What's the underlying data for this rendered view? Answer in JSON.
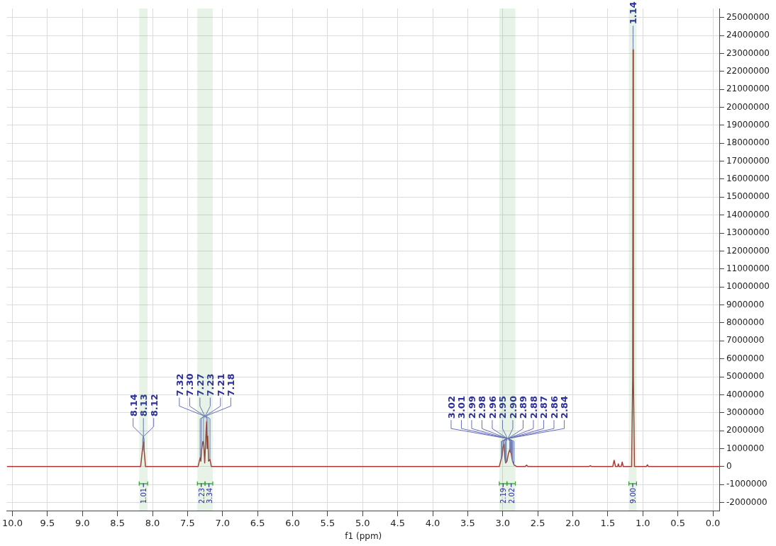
{
  "chart_data": {
    "type": "line",
    "xlabel": "f1 (ppm)",
    "grid": true,
    "legend": false,
    "marker": "none",
    "line_style": "solid",
    "xlim": [
      10.08,
      -0.1
    ],
    "xticks": [
      {
        "value": 10,
        "label": "10.0"
      },
      {
        "value": 9.5,
        "label": "9.5"
      },
      {
        "value": 9,
        "label": "9.0"
      },
      {
        "value": 8.5,
        "label": "8.5"
      },
      {
        "value": 8,
        "label": "8.0"
      },
      {
        "value": 7.5,
        "label": "7.5"
      },
      {
        "value": 7,
        "label": "7.0"
      },
      {
        "value": 6.5,
        "label": "6.5"
      },
      {
        "value": 6,
        "label": "6.0"
      },
      {
        "value": 5.5,
        "label": "5.5"
      },
      {
        "value": 5,
        "label": "5.0"
      },
      {
        "value": 4.5,
        "label": "4.5"
      },
      {
        "value": 4,
        "label": "4.0"
      },
      {
        "value": 3.5,
        "label": "3.5"
      },
      {
        "value": 3,
        "label": "3.0"
      },
      {
        "value": 2.5,
        "label": "2.5"
      },
      {
        "value": 2,
        "label": "2.0"
      },
      {
        "value": 1.5,
        "label": "1.5"
      },
      {
        "value": 1,
        "label": "1.0"
      },
      {
        "value": 0.5,
        "label": "0.5"
      },
      {
        "value": 0,
        "label": "0.0"
      }
    ],
    "ylim": [
      -2450000,
      25500000
    ],
    "yticks": [
      -2000000,
      -1000000,
      0,
      1000000,
      2000000,
      3000000,
      4000000,
      5000000,
      6000000,
      7000000,
      8000000,
      9000000,
      10000000,
      11000000,
      12000000,
      13000000,
      14000000,
      15000000,
      16000000,
      17000000,
      18000000,
      19000000,
      20000000,
      21000000,
      22000000,
      23000000,
      24000000,
      25000000
    ],
    "series": [
      {
        "color": "#a83a3a",
        "x": [
          10.08,
          8.17,
          8.145,
          8.135,
          8.13,
          8.125,
          8.12,
          8.1,
          7.35,
          7.32,
          7.31,
          7.3,
          7.29,
          7.28,
          7.27,
          7.255,
          7.24,
          7.23,
          7.22,
          7.21,
          7.2,
          7.18,
          7.16,
          3.05,
          3.02,
          3.01,
          2.995,
          2.98,
          2.97,
          2.96,
          2.94,
          2.92,
          2.9,
          2.89,
          2.88,
          2.87,
          2.86,
          2.84,
          2.8,
          2.68,
          2.66,
          2.64,
          1.77,
          1.75,
          1.73,
          1.43,
          1.41,
          1.39,
          1.36,
          1.35,
          1.34,
          1.31,
          1.295,
          1.28,
          1.16,
          1.145,
          1.14,
          1.135,
          1.12,
          0.95,
          0.935,
          0.92,
          -0.1
        ],
        "values": [
          0,
          0,
          900000,
          1200000,
          1360000,
          1200000,
          900000,
          0,
          0,
          500000,
          300000,
          900000,
          1200000,
          1400000,
          1300000,
          200000,
          1600000,
          2500000,
          1000000,
          1700000,
          300000,
          400000,
          0,
          0,
          450000,
          600000,
          1100000,
          1250000,
          500000,
          200000,
          300000,
          700000,
          950000,
          800000,
          750000,
          500000,
          300000,
          100000,
          0,
          0,
          80000,
          0,
          0,
          50000,
          0,
          0,
          350000,
          0,
          0,
          150000,
          0,
          0,
          250000,
          0,
          0,
          5000000,
          23200000,
          5000000,
          0,
          0,
          100000,
          0,
          0
        ]
      }
    ],
    "annotations": [
      {
        "text": "8.14",
        "x": 8.14,
        "y": 900000
      },
      {
        "text": "8.13",
        "x": 8.13,
        "y": 1360000
      },
      {
        "text": "8.12",
        "x": 8.12,
        "y": 900000
      },
      {
        "text": "7.32",
        "x": 7.32,
        "y": 500000
      },
      {
        "text": "7.30",
        "x": 7.3,
        "y": 900000
      },
      {
        "text": "7.27",
        "x": 7.27,
        "y": 1300000
      },
      {
        "text": "7.23",
        "x": 7.23,
        "y": 2500000
      },
      {
        "text": "7.21",
        "x": 7.21,
        "y": 1700000
      },
      {
        "text": "7.18",
        "x": 7.18,
        "y": 400000
      },
      {
        "text": "3.02",
        "x": 3.02,
        "y": 450000
      },
      {
        "text": "3.01",
        "x": 3.01,
        "y": 600000
      },
      {
        "text": "2.99",
        "x": 2.99,
        "y": 1100000
      },
      {
        "text": "2.98",
        "x": 2.98,
        "y": 1250000
      },
      {
        "text": "2.96",
        "x": 2.96,
        "y": 200000
      },
      {
        "text": "2.95",
        "x": 2.95,
        "y": 300000
      },
      {
        "text": "2.90",
        "x": 2.9,
        "y": 950000
      },
      {
        "text": "2.89",
        "x": 2.89,
        "y": 800000
      },
      {
        "text": "2.88",
        "x": 2.88,
        "y": 750000
      },
      {
        "text": "2.87",
        "x": 2.87,
        "y": 500000
      },
      {
        "text": "2.86",
        "x": 2.86,
        "y": 300000
      },
      {
        "text": "2.84",
        "x": 2.84,
        "y": 100000
      },
      {
        "text": "1.14",
        "x": 1.14,
        "y": 23200000
      }
    ],
    "bands": [
      {
        "axis": "x",
        "from": 8.19,
        "to": 8.07,
        "label": "1.01",
        "color": "#3a9a3a"
      },
      {
        "axis": "x",
        "from": 7.36,
        "to": 7.25,
        "label": "2.23",
        "color": "#3a9a3a"
      },
      {
        "axis": "x",
        "from": 7.25,
        "to": 7.14,
        "label": "3.34",
        "color": "#3a9a3a"
      },
      {
        "axis": "x",
        "from": 3.05,
        "to": 2.94,
        "label": "2.19",
        "color": "#3a9a3a"
      },
      {
        "axis": "x",
        "from": 2.94,
        "to": 2.82,
        "label": "2.02",
        "color": "#3a9a3a"
      },
      {
        "axis": "x",
        "from": 1.2,
        "to": 1.09,
        "label": "9.00",
        "color": "#3a9a3a"
      }
    ]
  }
}
